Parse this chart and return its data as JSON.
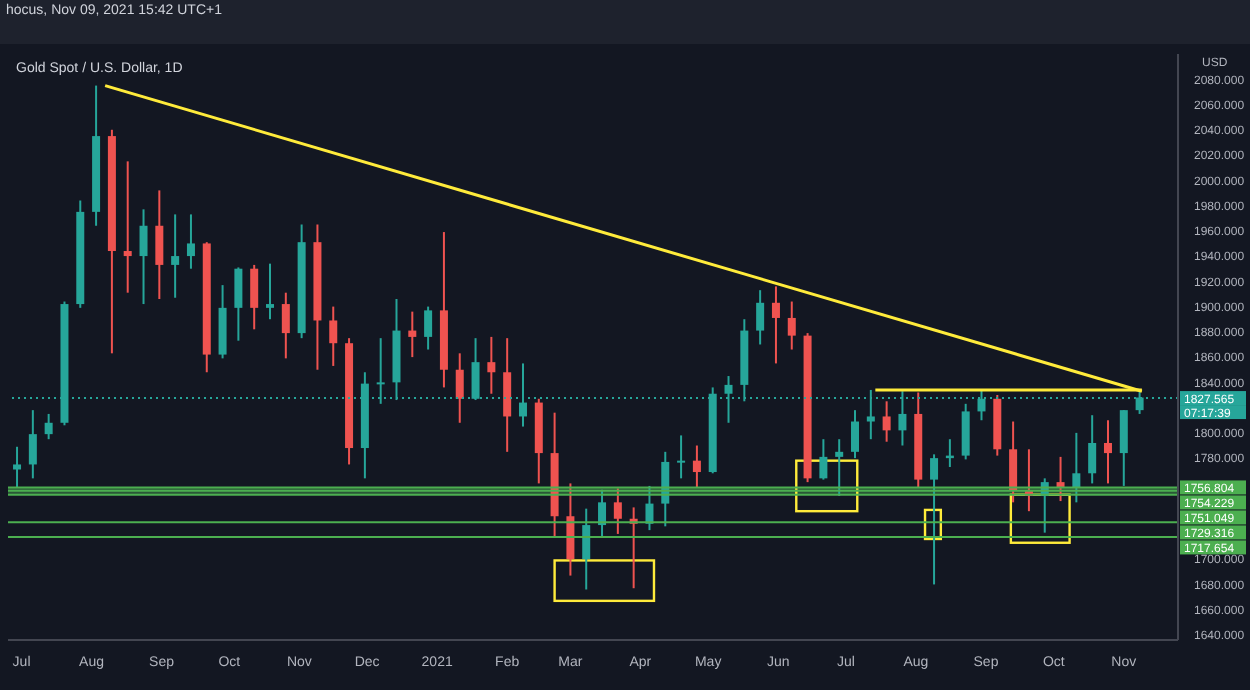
{
  "chart_data": {
    "type": "candlestick",
    "title": "Gold Spot / U.S. Dollar, 1D",
    "ylabel": "USD",
    "annotations": [
      "hocus, Nov 09, 2021 15:42 UTC+1",
      "07:17:39"
    ],
    "x": [
      "2020-06-29",
      "2020-07-06",
      "2020-07-13",
      "2020-07-20",
      "2020-07-27",
      "2020-08-03",
      "2020-08-10",
      "2020-08-17",
      "2020-08-24",
      "2020-08-31",
      "2020-09-07",
      "2020-09-14",
      "2020-09-21",
      "2020-09-28",
      "2020-10-05",
      "2020-10-12",
      "2020-10-19",
      "2020-10-26",
      "2020-11-02",
      "2020-11-09",
      "2020-11-16",
      "2020-11-23",
      "2020-11-30",
      "2020-12-07",
      "2020-12-14",
      "2020-12-21",
      "2020-12-28",
      "2021-01-04",
      "2021-01-11",
      "2021-01-18",
      "2021-01-25",
      "2021-02-01",
      "2021-02-08",
      "2021-02-15",
      "2021-02-22",
      "2021-03-01",
      "2021-03-08",
      "2021-03-15",
      "2021-03-22",
      "2021-03-29",
      "2021-04-05",
      "2021-04-12",
      "2021-04-19",
      "2021-04-26",
      "2021-05-03",
      "2021-05-10",
      "2021-05-17",
      "2021-05-24",
      "2021-05-31",
      "2021-06-07",
      "2021-06-14",
      "2021-06-21",
      "2021-06-28",
      "2021-07-05",
      "2021-07-12",
      "2021-07-19",
      "2021-07-26",
      "2021-08-02",
      "2021-08-09",
      "2021-08-16",
      "2021-08-23",
      "2021-08-30",
      "2021-09-06",
      "2021-09-13",
      "2021-09-20",
      "2021-09-27",
      "2021-10-04",
      "2021-10-11",
      "2021-10-18",
      "2021-10-25",
      "2021-11-01",
      "2021-11-08"
    ],
    "ohlc": [
      [
        1771,
        1789,
        1757,
        1775
      ],
      [
        1775,
        1818,
        1764,
        1799
      ],
      [
        1799,
        1815,
        1795,
        1808
      ],
      [
        1808,
        1904,
        1806,
        1902
      ],
      [
        1902,
        1984,
        1899,
        1975
      ],
      [
        1975,
        2075,
        1964,
        2035
      ],
      [
        2035,
        2040,
        1863,
        1944
      ],
      [
        1944,
        2015,
        1911,
        1940
      ],
      [
        1940,
        1977,
        1902,
        1964
      ],
      [
        1964,
        1992,
        1906,
        1933
      ],
      [
        1933,
        1973,
        1907,
        1940
      ],
      [
        1940,
        1973,
        1930,
        1950
      ],
      [
        1950,
        1951,
        1848,
        1862
      ],
      [
        1862,
        1917,
        1859,
        1899
      ],
      [
        1899,
        1931,
        1873,
        1930
      ],
      [
        1930,
        1933,
        1882,
        1899
      ],
      [
        1899,
        1934,
        1890,
        1902
      ],
      [
        1902,
        1911,
        1859,
        1879
      ],
      [
        1879,
        1965,
        1875,
        1951
      ],
      [
        1951,
        1965,
        1850,
        1889
      ],
      [
        1889,
        1900,
        1853,
        1871
      ],
      [
        1871,
        1875,
        1775,
        1788
      ],
      [
        1788,
        1848,
        1764,
        1839
      ],
      [
        1839,
        1875,
        1823,
        1840
      ],
      [
        1840,
        1906,
        1826,
        1881
      ],
      [
        1881,
        1896,
        1860,
        1876
      ],
      [
        1876,
        1900,
        1866,
        1897
      ],
      [
        1897,
        1959,
        1836,
        1850
      ],
      [
        1850,
        1863,
        1808,
        1827
      ],
      [
        1827,
        1875,
        1826,
        1856
      ],
      [
        1856,
        1876,
        1831,
        1848
      ],
      [
        1848,
        1875,
        1785,
        1813
      ],
      [
        1813,
        1855,
        1805,
        1824
      ],
      [
        1824,
        1827,
        1760,
        1784
      ],
      [
        1784,
        1816,
        1717,
        1734
      ],
      [
        1734,
        1760,
        1687,
        1700
      ],
      [
        1700,
        1740,
        1676,
        1727
      ],
      [
        1727,
        1755,
        1718,
        1745
      ],
      [
        1745,
        1756,
        1720,
        1732
      ],
      [
        1732,
        1741,
        1677,
        1728
      ],
      [
        1728,
        1758,
        1723,
        1744
      ],
      [
        1744,
        1785,
        1726,
        1777
      ],
      [
        1777,
        1798,
        1764,
        1778
      ],
      [
        1778,
        1790,
        1757,
        1769
      ],
      [
        1769,
        1836,
        1768,
        1831
      ],
      [
        1831,
        1845,
        1808,
        1838
      ],
      [
        1838,
        1890,
        1825,
        1881
      ],
      [
        1881,
        1913,
        1870,
        1903
      ],
      [
        1903,
        1916,
        1855,
        1891
      ],
      [
        1891,
        1904,
        1866,
        1877
      ],
      [
        1877,
        1879,
        1761,
        1764
      ],
      [
        1764,
        1795,
        1763,
        1781
      ],
      [
        1781,
        1795,
        1750,
        1785
      ],
      [
        1785,
        1818,
        1780,
        1809
      ],
      [
        1809,
        1834,
        1795,
        1813
      ],
      [
        1813,
        1825,
        1793,
        1802
      ],
      [
        1802,
        1833,
        1790,
        1815
      ],
      [
        1815,
        1832,
        1757,
        1763
      ],
      [
        1763,
        1783,
        1680,
        1780
      ],
      [
        1780,
        1795,
        1773,
        1782
      ],
      [
        1782,
        1823,
        1779,
        1817
      ],
      [
        1817,
        1834,
        1810,
        1827
      ],
      [
        1827,
        1830,
        1782,
        1787
      ],
      [
        1787,
        1809,
        1745,
        1754
      ],
      [
        1754,
        1787,
        1738,
        1750
      ],
      [
        1750,
        1764,
        1721,
        1761
      ],
      [
        1761,
        1781,
        1746,
        1757
      ],
      [
        1757,
        1800,
        1745,
        1768
      ],
      [
        1768,
        1814,
        1760,
        1792
      ],
      [
        1792,
        1810,
        1760,
        1784
      ],
      [
        1784,
        1818,
        1758,
        1818
      ],
      [
        1818,
        1833,
        1815,
        1828
      ]
    ],
    "colors": [
      "#26a69a",
      "#26a69a",
      "#26a69a",
      "#26a69a",
      "#26a69a",
      "#26a69a",
      "#ef5350",
      "#ef5350",
      "#26a69a",
      "#ef5350",
      "#26a69a",
      "#26a69a",
      "#ef5350",
      "#26a69a",
      "#26a69a",
      "#ef5350",
      "#26a69a",
      "#ef5350",
      "#26a69a",
      "#ef5350",
      "#ef5350",
      "#ef5350",
      "#26a69a",
      "#26a69a",
      "#26a69a",
      "#ef5350",
      "#26a69a",
      "#ef5350",
      "#ef5350",
      "#26a69a",
      "#ef5350",
      "#ef5350",
      "#26a69a",
      "#ef5350",
      "#ef5350",
      "#ef5350",
      "#26a69a",
      "#26a69a",
      "#ef5350",
      "#ef5350",
      "#26a69a",
      "#26a69a",
      "#26a69a",
      "#ef5350",
      "#26a69a",
      "#26a69a",
      "#26a69a",
      "#26a69a",
      "#ef5350",
      "#ef5350",
      "#ef5350",
      "#26a69a",
      "#26a69a",
      "#26a69a",
      "#26a69a",
      "#ef5350",
      "#26a69a",
      "#ef5350",
      "#26a69a",
      "#26a69a",
      "#26a69a",
      "#26a69a",
      "#ef5350",
      "#ef5350",
      "#ef5350",
      "#26a69a",
      "#ef5350",
      "#26a69a",
      "#26a69a",
      "#ef5350",
      "#26a69a",
      "#26a69a"
    ],
    "series": [
      {
        "type": "line",
        "color": "#ffeb3b",
        "x": [
          "2020-08-07",
          "2021-11-09"
        ],
        "values": [
          2075,
          1833
        ]
      },
      {
        "type": "line",
        "color": "#ffeb3b",
        "x": [
          "2021-07-14",
          "2021-11-09"
        ],
        "values": [
          1834,
          1834
        ]
      }
    ],
    "ref_lines": [
      {
        "axis": "y",
        "value": 1827.565,
        "label": "1827.565",
        "color": "#26a69a",
        "line_style": "dotted"
      },
      {
        "axis": "y",
        "value": 1756.804,
        "label": "1756.804",
        "color": "#4caf50"
      },
      {
        "axis": "y",
        "value": 1754.229,
        "label": "1754.229",
        "color": "#4caf50"
      },
      {
        "axis": "y",
        "value": 1751.049,
        "label": "1751.049",
        "color": "#4caf50"
      },
      {
        "axis": "y",
        "value": 1729.316,
        "label": "1729.316",
        "color": "#4caf50"
      },
      {
        "axis": "y",
        "value": 1717.654,
        "label": "1717.654",
        "color": "#4caf50"
      }
    ],
    "bands": [
      {
        "axis": "y",
        "from": 1751.049,
        "to": 1756.804,
        "color": "#2e5e3a"
      }
    ],
    "xlim": [
      "2020-06-25",
      "2021-11-25"
    ],
    "xticks": [
      {
        "value": "2020-07-01",
        "label": "Jul"
      },
      {
        "value": "2020-08-01",
        "label": "Aug"
      },
      {
        "value": "2020-09-01",
        "label": "Sep"
      },
      {
        "value": "2020-10-01",
        "label": "Oct"
      },
      {
        "value": "2020-11-01",
        "label": "Nov"
      },
      {
        "value": "2020-12-01",
        "label": "Dec"
      },
      {
        "value": "2021-01-01",
        "label": "2021"
      },
      {
        "value": "2021-02-01",
        "label": "Feb"
      },
      {
        "value": "2021-03-01",
        "label": "Mar"
      },
      {
        "value": "2021-04-01",
        "label": "Apr"
      },
      {
        "value": "2021-05-01",
        "label": "May"
      },
      {
        "value": "2021-06-01",
        "label": "Jun"
      },
      {
        "value": "2021-07-01",
        "label": "Jul"
      },
      {
        "value": "2021-08-01",
        "label": "Aug"
      },
      {
        "value": "2021-09-01",
        "label": "Sep"
      },
      {
        "value": "2021-10-01",
        "label": "Oct"
      },
      {
        "value": "2021-11-01",
        "label": "Nov"
      }
    ],
    "ylim": [
      1636,
      2100
    ],
    "yticks": [
      {
        "value": 1640,
        "label": "1640.000"
      },
      {
        "value": 1660,
        "label": "1660.000"
      },
      {
        "value": 1680,
        "label": "1680.000"
      },
      {
        "value": 1700,
        "label": "1700.000"
      },
      {
        "value": 1780,
        "label": "1780.000"
      },
      {
        "value": 1800,
        "label": "1800.000"
      },
      {
        "value": 1840,
        "label": "1840.000"
      },
      {
        "value": 1860,
        "label": "1860.000"
      },
      {
        "value": 1880,
        "label": "1880.000"
      },
      {
        "value": 1900,
        "label": "1900.000"
      },
      {
        "value": 1920,
        "label": "1920.000"
      },
      {
        "value": 1940,
        "label": "1940.000"
      },
      {
        "value": 1960,
        "label": "1960.000"
      },
      {
        "value": 1980,
        "label": "1980.000"
      },
      {
        "value": 2000,
        "label": "2000.000"
      },
      {
        "value": 2020,
        "label": "2020.000"
      },
      {
        "value": 2040,
        "label": "2040.000"
      },
      {
        "value": 2060,
        "label": "2060.000"
      },
      {
        "value": 2080,
        "label": "2080.000"
      }
    ]
  }
}
